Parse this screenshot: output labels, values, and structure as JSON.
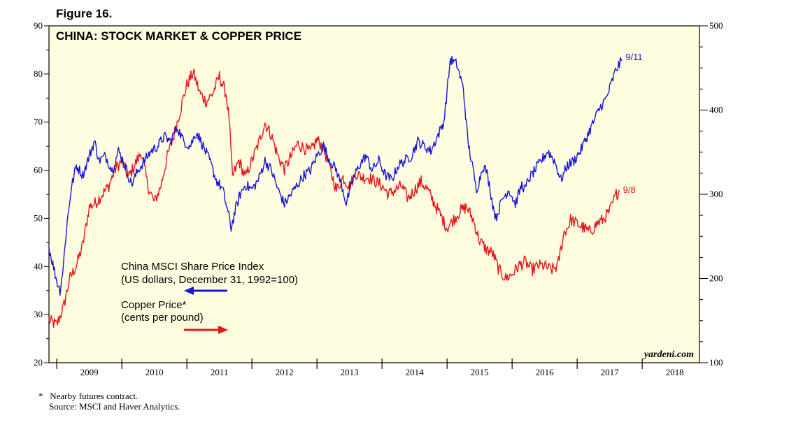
{
  "figure_label": "Figure 16.",
  "footnotes": {
    "marker": "*",
    "contract": "Nearby futures contract.",
    "source": "Source: MSCI and Haver Analytics."
  },
  "colors": {
    "msci": "#1515dd",
    "copper": "#e8141a",
    "plot_bg": "#fffde0"
  },
  "chart_data": {
    "type": "line",
    "title": "CHINA: STOCK MARKET & COPPER PRICE",
    "brand": "yardeni.com",
    "x_range": [
      2008.88,
      2018.88
    ],
    "x_ticks": [
      "2009",
      "2010",
      "2011",
      "2012",
      "2013",
      "2014",
      "2015",
      "2016",
      "2017",
      "2018"
    ],
    "left_axis": {
      "range": [
        20,
        90
      ],
      "ticks": [
        "20",
        "30",
        "40",
        "50",
        "60",
        "70",
        "80",
        "90"
      ]
    },
    "right_axis": {
      "range": [
        100,
        500
      ],
      "ticks": [
        "100",
        "200",
        "300",
        "400",
        "500"
      ]
    },
    "series": [
      {
        "name": "China MSCI Share Price Index",
        "unit": "(US dollars, December 31, 1992=100)",
        "axis": "left",
        "end_label": "9/11",
        "x": [
          2008.88,
          2009.0,
          2009.05,
          2009.1,
          2009.15,
          2009.22,
          2009.3,
          2009.4,
          2009.5,
          2009.58,
          2009.65,
          2009.75,
          2009.85,
          2009.95,
          2010.05,
          2010.15,
          2010.25,
          2010.35,
          2010.45,
          2010.55,
          2010.65,
          2010.75,
          2010.85,
          2010.95,
          2011.05,
          2011.15,
          2011.25,
          2011.35,
          2011.45,
          2011.55,
          2011.62,
          2011.68,
          2011.75,
          2011.82,
          2011.9,
          2012.0,
          2012.1,
          2012.2,
          2012.3,
          2012.4,
          2012.5,
          2012.6,
          2012.7,
          2012.8,
          2012.9,
          2013.0,
          2013.1,
          2013.2,
          2013.3,
          2013.4,
          2013.45,
          2013.55,
          2013.65,
          2013.75,
          2013.85,
          2013.95,
          2014.05,
          2014.15,
          2014.25,
          2014.35,
          2014.45,
          2014.55,
          2014.65,
          2014.75,
          2014.85,
          2014.95,
          2015.05,
          2015.15,
          2015.25,
          2015.32,
          2015.4,
          2015.45,
          2015.5,
          2015.55,
          2015.6,
          2015.65,
          2015.7,
          2015.75,
          2015.85,
          2015.95,
          2016.05,
          2016.1,
          2016.15,
          2016.2,
          2016.25,
          2016.35,
          2016.45,
          2016.55,
          2016.65,
          2016.75,
          2016.85,
          2016.95,
          2017.05,
          2017.15,
          2017.25,
          2017.35,
          2017.45,
          2017.55,
          2017.6,
          2017.65,
          2017.69
        ],
        "values": [
          44,
          37,
          35,
          40,
          48,
          56,
          61,
          59,
          63,
          66,
          62,
          63,
          60,
          64,
          61,
          57,
          60,
          62,
          64,
          65,
          67,
          66,
          69,
          66,
          65,
          68,
          65,
          62,
          58,
          56,
          52,
          48,
          52,
          55,
          57,
          56,
          58,
          62,
          60,
          56,
          53,
          55,
          57,
          59,
          60,
          63,
          65,
          62,
          60,
          56,
          53,
          58,
          61,
          63,
          60,
          62,
          59,
          58,
          61,
          62,
          63,
          66,
          65,
          64,
          67,
          70,
          83,
          82,
          77,
          66,
          60,
          56,
          58,
          61,
          60,
          57,
          53,
          50,
          54,
          56,
          53,
          55,
          57,
          56,
          58,
          60,
          62,
          64,
          62,
          58,
          61,
          62,
          64,
          67,
          70,
          73,
          75,
          79,
          81,
          82,
          83
        ]
      },
      {
        "name": "Copper Price*",
        "unit": "(cents per pound)",
        "axis": "right",
        "end_label": "9/8",
        "x": [
          2008.88,
          2009.0,
          2009.1,
          2009.2,
          2009.3,
          2009.4,
          2009.5,
          2009.6,
          2009.7,
          2009.8,
          2009.9,
          2010.0,
          2010.1,
          2010.2,
          2010.3,
          2010.4,
          2010.5,
          2010.6,
          2010.7,
          2010.8,
          2010.9,
          2011.0,
          2011.1,
          2011.2,
          2011.3,
          2011.4,
          2011.5,
          2011.6,
          2011.65,
          2011.7,
          2011.8,
          2011.9,
          2012.0,
          2012.1,
          2012.2,
          2012.3,
          2012.4,
          2012.5,
          2012.6,
          2012.7,
          2012.8,
          2012.9,
          2013.0,
          2013.1,
          2013.2,
          2013.3,
          2013.4,
          2013.5,
          2013.6,
          2013.7,
          2013.8,
          2013.9,
          2014.0,
          2014.1,
          2014.2,
          2014.3,
          2014.4,
          2014.5,
          2014.6,
          2014.7,
          2014.8,
          2014.9,
          2015.0,
          2015.1,
          2015.2,
          2015.3,
          2015.4,
          2015.5,
          2015.6,
          2015.7,
          2015.8,
          2015.9,
          2016.0,
          2016.1,
          2016.2,
          2016.3,
          2016.4,
          2016.5,
          2016.6,
          2016.7,
          2016.8,
          2016.85,
          2016.9,
          2017.0,
          2017.1,
          2017.2,
          2017.3,
          2017.4,
          2017.5,
          2017.6,
          2017.65
        ],
        "values": [
          150,
          145,
          165,
          200,
          215,
          240,
          285,
          290,
          300,
          310,
          330,
          340,
          320,
          335,
          350,
          310,
          290,
          310,
          345,
          370,
          400,
          430,
          445,
          420,
          410,
          420,
          440,
          420,
          390,
          320,
          340,
          320,
          340,
          360,
          385,
          370,
          345,
          330,
          345,
          360,
          355,
          350,
          365,
          355,
          330,
          305,
          320,
          310,
          325,
          320,
          320,
          315,
          310,
          300,
          305,
          310,
          295,
          305,
          315,
          305,
          290,
          275,
          260,
          270,
          280,
          285,
          270,
          245,
          235,
          230,
          210,
          200,
          205,
          215,
          220,
          210,
          215,
          215,
          210,
          215,
          255,
          260,
          270,
          265,
          260,
          255,
          265,
          270,
          280,
          300,
          305
        ]
      }
    ]
  }
}
